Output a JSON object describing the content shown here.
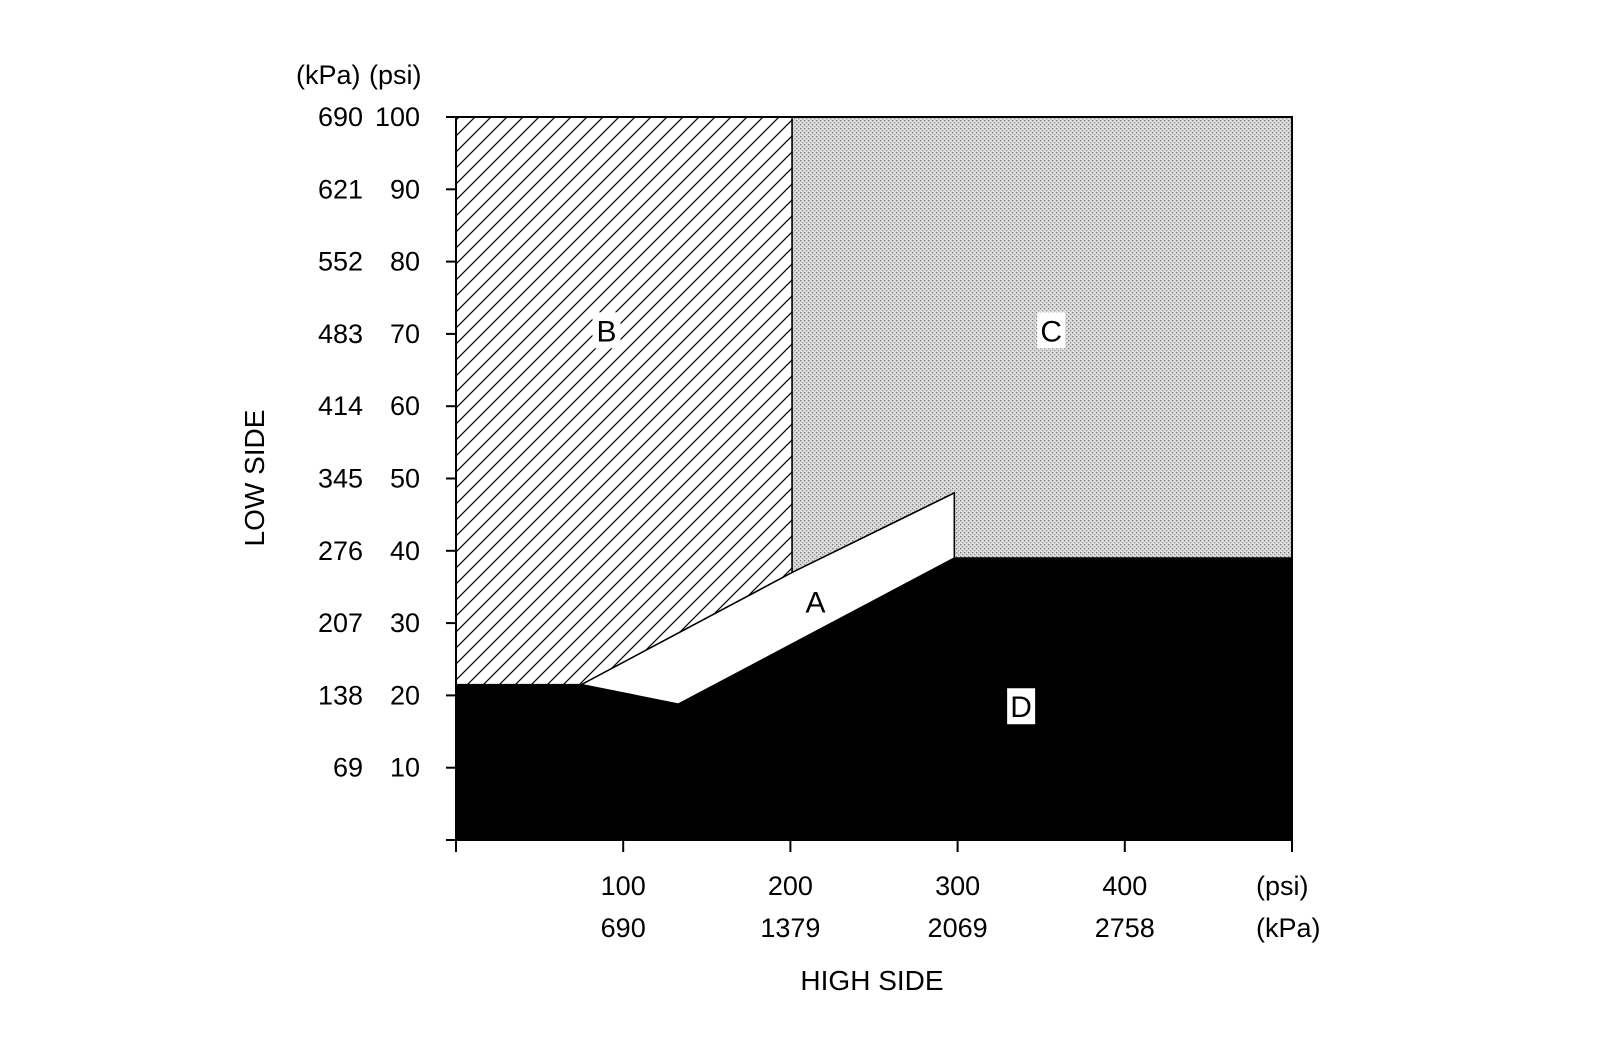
{
  "chart_data": {
    "type": "area",
    "title": "",
    "xlabel": "HIGH SIDE",
    "ylabel": "LOW SIDE",
    "x_units": [
      "(psi)",
      "(kPa)"
    ],
    "y_units": [
      "(kPa)",
      "(psi)"
    ],
    "xlim": [
      0,
      500
    ],
    "ylim": [
      0,
      100
    ],
    "x_ticks": [
      {
        "psi": 100,
        "kpa": "690"
      },
      {
        "psi": 200,
        "kpa": "1379"
      },
      {
        "psi": 300,
        "kpa": "2069"
      },
      {
        "psi": 400,
        "kpa": "2758"
      }
    ],
    "y_ticks": [
      {
        "psi": 100,
        "kpa": "690"
      },
      {
        "psi": 90,
        "kpa": "621"
      },
      {
        "psi": 80,
        "kpa": "552"
      },
      {
        "psi": 70,
        "kpa": "483"
      },
      {
        "psi": 60,
        "kpa": "414"
      },
      {
        "psi": 50,
        "kpa": "345"
      },
      {
        "psi": 40,
        "kpa": "276"
      },
      {
        "psi": 30,
        "kpa": "207"
      },
      {
        "psi": 20,
        "kpa": "138"
      },
      {
        "psi": 10,
        "kpa": "69"
      }
    ],
    "regions": [
      {
        "label": "B",
        "fill": "hatch",
        "points": [
          [
            0,
            100
          ],
          [
            201,
            100
          ],
          [
            201,
            37
          ],
          [
            75,
            21.5
          ],
          [
            0,
            21.5
          ]
        ],
        "label_at": [
          90,
          70.5
        ]
      },
      {
        "label": "C",
        "fill": "dots",
        "points": [
          [
            201,
            100
          ],
          [
            500,
            100
          ],
          [
            500,
            39
          ],
          [
            298,
            39
          ],
          [
            298,
            48
          ],
          [
            201,
            37
          ]
        ],
        "label_at": [
          356,
          70.5
        ]
      },
      {
        "label": "A",
        "fill": "white",
        "points": [
          [
            75,
            21.5
          ],
          [
            201,
            37
          ],
          [
            298,
            48
          ],
          [
            298,
            39
          ],
          [
            133,
            18.8
          ],
          [
            75,
            21.5
          ]
        ],
        "label_at": [
          215,
          33
        ]
      },
      {
        "label": "D",
        "fill": "black",
        "points": [
          [
            0,
            0
          ],
          [
            500,
            0
          ],
          [
            500,
            39
          ],
          [
            298,
            39
          ],
          [
            133,
            18.8
          ],
          [
            75,
            21.5
          ],
          [
            0,
            21.5
          ]
        ],
        "label_at": [
          338,
          18.5
        ]
      }
    ]
  }
}
